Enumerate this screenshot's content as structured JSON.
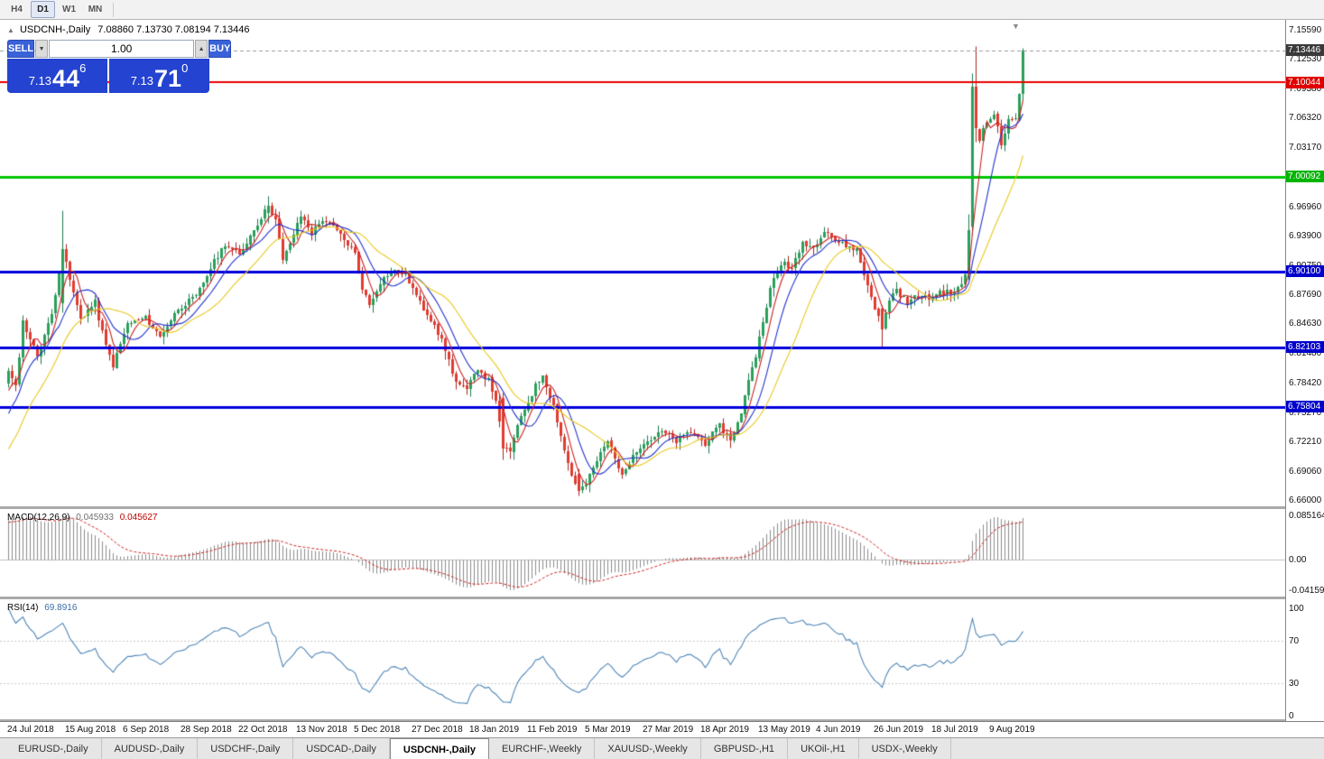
{
  "icons": {
    "collapse": "▲",
    "scroll_marker": "▼",
    "volume_down": "▼",
    "volume_up": "▲"
  },
  "toolbar": {
    "timeframes": [
      "H4",
      "D1",
      "W1",
      "MN"
    ],
    "active": "D1"
  },
  "chart_header": {
    "symbol_title": "USDCNH-,Daily",
    "ohlc": "7.08860 7.13730 7.08194 7.13446"
  },
  "trade_panel": {
    "sell_label": "SELL",
    "buy_label": "BUY",
    "volume": "1.00",
    "sell_price": {
      "prefix": "7.13",
      "big": "44",
      "sup": "6"
    },
    "buy_price": {
      "prefix": "7.13",
      "big": "71",
      "sup": "0"
    }
  },
  "price_axis": {
    "ticks": [
      "7.15590",
      "7.12530",
      "7.09380",
      "7.06320",
      "7.03170",
      "6.96960",
      "6.93900",
      "6.90750",
      "6.87690",
      "6.84630",
      "6.81480",
      "6.78420",
      "6.75270",
      "6.72210",
      "6.69060",
      "6.66000"
    ],
    "special_labels": [
      {
        "text": "7.13446",
        "price": 7.13446,
        "bg": "#3a3a3a",
        "role": "current-price"
      },
      {
        "text": "7.10044",
        "price": 7.10044,
        "bg": "#e00000",
        "role": "resistance-line"
      },
      {
        "text": "7.00092",
        "price": 7.00092,
        "bg": "#00b400",
        "role": "support-line-green"
      },
      {
        "text": "6.90100",
        "price": 6.901,
        "bg": "#0000cc",
        "role": "level-line-1"
      },
      {
        "text": "6.82103",
        "price": 6.82103,
        "bg": "#0000cc",
        "role": "level-line-2"
      },
      {
        "text": "6.75804",
        "price": 6.75804,
        "bg": "#0000cc",
        "role": "level-line-3"
      }
    ]
  },
  "hlines": [
    {
      "price": 7.10044,
      "color": "#e80000",
      "width": 2,
      "style": "solid"
    },
    {
      "price": 7.00092,
      "color": "#00c400",
      "width": 3,
      "style": "solid"
    },
    {
      "price": 6.901,
      "color": "#0000dd",
      "width": 3,
      "style": "solid"
    },
    {
      "price": 6.82103,
      "color": "#0000dd",
      "width": 3,
      "style": "solid"
    },
    {
      "price": 6.75804,
      "color": "#0000dd",
      "width": 3,
      "style": "solid"
    },
    {
      "price": 7.13446,
      "color": "#9a9a9a",
      "width": 1,
      "style": "dash"
    }
  ],
  "macd_panel": {
    "label": "MACD(12,26,9)",
    "value_main": "0.045933",
    "value_signal": "0.045627",
    "axis": {
      "top": "0.085164",
      "zero": "0.00",
      "bottom": "-0.041597"
    },
    "params": {
      "fast": 12,
      "slow": 26,
      "signal": 9
    },
    "colors": {
      "hist": "#8c8c8c",
      "signal": "#cc2222",
      "zero_line": "#c0c0c0"
    }
  },
  "rsi_panel": {
    "label": "RSI(14)",
    "value": "69.8916",
    "period": 14,
    "levels": [
      100,
      70,
      30,
      0
    ],
    "dashed_levels": [
      70,
      30
    ],
    "color": "#4f86b8",
    "level_color": "#c8c8c8"
  },
  "time_axis": {
    "labels": [
      {
        "text": "24 Jul 2018",
        "index": 0
      },
      {
        "text": "15 Aug 2018",
        "index": 16
      },
      {
        "text": "6 Sep 2018",
        "index": 32
      },
      {
        "text": "28 Sep 2018",
        "index": 48
      },
      {
        "text": "22 Oct 2018",
        "index": 64
      },
      {
        "text": "13 Nov 2018",
        "index": 80
      },
      {
        "text": "5 Dec 2018",
        "index": 96
      },
      {
        "text": "27 Dec 2018",
        "index": 112
      },
      {
        "text": "18 Jan 2019",
        "index": 128
      },
      {
        "text": "11 Feb 2019",
        "index": 144
      },
      {
        "text": "5 Mar 2019",
        "index": 160
      },
      {
        "text": "27 Mar 2019",
        "index": 176
      },
      {
        "text": "18 Apr 2019",
        "index": 192
      },
      {
        "text": "13 May 2019",
        "index": 208
      },
      {
        "text": "4 Jun 2019",
        "index": 224
      },
      {
        "text": "26 Jun 2019",
        "index": 240
      },
      {
        "text": "18 Jul 2019",
        "index": 256
      },
      {
        "text": "9 Aug 2019",
        "index": 272
      }
    ]
  },
  "tabs": {
    "items": [
      "EURUSD-,Daily",
      "AUDUSD-,Daily",
      "USDCHF-,Daily",
      "USDCAD-,Daily",
      "USDCNH-,Daily",
      "EURCHF-,Weekly",
      "XAUUSD-,Weekly",
      "GBPUSD-,H1",
      "UKOil-,H1",
      "USDX-,Weekly"
    ],
    "active_index": 4
  },
  "chart_data": {
    "type": "candlestick",
    "symbol": "USDCNH",
    "period": "Daily",
    "candle_count": 282,
    "last_candle": {
      "open": 7.0886,
      "high": 7.1373,
      "low": 7.08194,
      "close": 7.13446
    },
    "price_range_visible": [
      6.66,
      7.1559
    ],
    "seed": 11,
    "noise": 0.006,
    "up_color": "#2aa05a",
    "up_border": "#1d7a4f",
    "down_color": "#e13b30",
    "down_border": "#a8271f",
    "ma": [
      {
        "period": 5,
        "color": "#cc2222"
      },
      {
        "period": 10,
        "color": "#2233cc"
      },
      {
        "period": 20,
        "color": "#e8c820"
      }
    ],
    "price_path": [
      [
        -60,
        6.478
      ],
      [
        -45,
        6.512
      ],
      [
        -30,
        6.568
      ],
      [
        -18,
        6.652
      ],
      [
        -8,
        6.718
      ],
      [
        -2,
        6.775
      ],
      [
        0,
        6.795
      ],
      [
        2,
        6.778
      ],
      [
        4,
        6.848
      ],
      [
        8,
        6.812
      ],
      [
        12,
        6.856
      ],
      [
        15,
        6.925
      ],
      [
        17,
        6.892
      ],
      [
        20,
        6.852
      ],
      [
        24,
        6.868
      ],
      [
        27,
        6.822
      ],
      [
        29,
        6.802
      ],
      [
        33,
        6.846
      ],
      [
        38,
        6.852
      ],
      [
        42,
        6.832
      ],
      [
        47,
        6.862
      ],
      [
        52,
        6.874
      ],
      [
        56,
        6.905
      ],
      [
        60,
        6.93
      ],
      [
        64,
        6.918
      ],
      [
        68,
        6.946
      ],
      [
        72,
        6.97
      ],
      [
        74,
        6.956
      ],
      [
        76,
        6.912
      ],
      [
        79,
        6.94
      ],
      [
        81,
        6.96
      ],
      [
        84,
        6.942
      ],
      [
        87,
        6.956
      ],
      [
        90,
        6.948
      ],
      [
        93,
        6.934
      ],
      [
        96,
        6.92
      ],
      [
        98,
        6.884
      ],
      [
        100,
        6.866
      ],
      [
        103,
        6.89
      ],
      [
        106,
        6.902
      ],
      [
        110,
        6.898
      ],
      [
        114,
        6.868
      ],
      [
        118,
        6.846
      ],
      [
        121,
        6.818
      ],
      [
        124,
        6.784
      ],
      [
        127,
        6.776
      ],
      [
        130,
        6.8
      ],
      [
        133,
        6.786
      ],
      [
        135,
        6.766
      ],
      [
        137,
        6.715
      ],
      [
        139,
        6.712
      ],
      [
        142,
        6.748
      ],
      [
        146,
        6.78
      ],
      [
        148,
        6.792
      ],
      [
        151,
        6.76
      ],
      [
        154,
        6.712
      ],
      [
        156,
        6.686
      ],
      [
        158,
        6.67
      ],
      [
        160,
        6.676
      ],
      [
        163,
        6.702
      ],
      [
        166,
        6.722
      ],
      [
        168,
        6.706
      ],
      [
        170,
        6.684
      ],
      [
        173,
        6.71
      ],
      [
        177,
        6.722
      ],
      [
        181,
        6.732
      ],
      [
        185,
        6.722
      ],
      [
        189,
        6.732
      ],
      [
        193,
        6.72
      ],
      [
        197,
        6.738
      ],
      [
        200,
        6.724
      ],
      [
        203,
        6.75
      ],
      [
        205,
        6.788
      ],
      [
        207,
        6.812
      ],
      [
        209,
        6.85
      ],
      [
        211,
        6.882
      ],
      [
        213,
        6.902
      ],
      [
        215,
        6.912
      ],
      [
        217,
        6.902
      ],
      [
        220,
        6.932
      ],
      [
        223,
        6.926
      ],
      [
        226,
        6.946
      ],
      [
        229,
        6.934
      ],
      [
        232,
        6.928
      ],
      [
        235,
        6.924
      ],
      [
        237,
        6.898
      ],
      [
        240,
        6.864
      ],
      [
        242,
        6.84
      ],
      [
        244,
        6.872
      ],
      [
        246,
        6.882
      ],
      [
        249,
        6.868
      ],
      [
        252,
        6.876
      ],
      [
        255,
        6.872
      ],
      [
        258,
        6.88
      ],
      [
        261,
        6.878
      ],
      [
        264,
        6.886
      ],
      [
        265,
        6.898
      ],
      [
        266,
        6.945
      ],
      [
        267,
        7.096
      ],
      [
        268,
        7.052
      ],
      [
        269,
        7.042
      ],
      [
        271,
        7.058
      ],
      [
        273,
        7.068
      ],
      [
        275,
        7.034
      ],
      [
        277,
        7.064
      ],
      [
        279,
        7.06
      ],
      [
        280,
        7.09
      ],
      [
        281,
        7.13446
      ]
    ],
    "overrides": {
      "15": [
        6.868,
        6.966,
        6.858,
        6.925
      ],
      "72": [
        6.962,
        6.981,
        6.952,
        6.97
      ],
      "137": [
        6.768,
        6.773,
        6.703,
        6.715
      ],
      "158": [
        6.688,
        6.693,
        6.665,
        6.67
      ],
      "242": [
        6.862,
        6.866,
        6.821,
        6.84
      ],
      "266": [
        6.898,
        6.962,
        6.892,
        6.945
      ],
      "267": [
        6.948,
        7.11,
        6.94,
        7.096
      ],
      "268": [
        7.096,
        7.139,
        7.038,
        7.052
      ],
      "281": [
        7.0886,
        7.1373,
        7.08194,
        7.13446
      ]
    }
  }
}
